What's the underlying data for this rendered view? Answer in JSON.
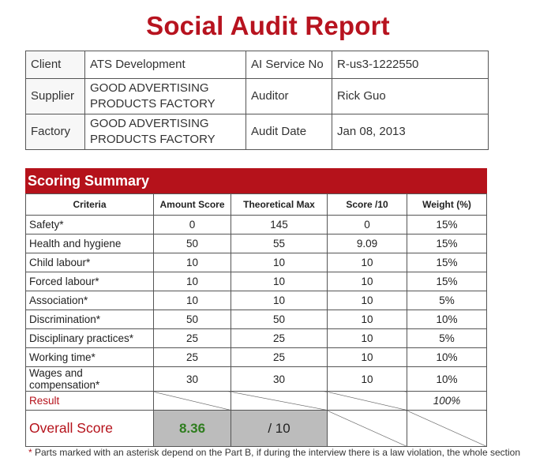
{
  "title": "Social Audit Report",
  "info": {
    "client_label": "Client",
    "client_value": "ATS Development",
    "service_label": "AI Service No",
    "service_value": "R-us3-1222550",
    "supplier_label": "Supplier",
    "supplier_value_line1": "GOOD ADVERTISING",
    "supplier_value_line2": "PRODUCTS FACTORY",
    "auditor_label": "Auditor",
    "auditor_value": "Rick Guo",
    "factory_label": "Factory",
    "factory_value_line1": "GOOD ADVERTISING",
    "factory_value_line2": "PRODUCTS FACTORY",
    "audit_date_label": "Audit Date",
    "audit_date_value": "Jan 08, 2013"
  },
  "scoring": {
    "heading": "Scoring Summary",
    "headers": [
      "Criteria",
      "Amount Score",
      "Theoretical Max",
      "Score /10",
      "Weight (%)"
    ],
    "rows": [
      [
        "Safety*",
        "0",
        "145",
        "0",
        "15%"
      ],
      [
        "Health and hygiene",
        "50",
        "55",
        "9.09",
        "15%"
      ],
      [
        "Child labour*",
        "10",
        "10",
        "10",
        "15%"
      ],
      [
        "Forced labour*",
        "10",
        "10",
        "10",
        "15%"
      ],
      [
        "Association*",
        "10",
        "10",
        "10",
        "5%"
      ],
      [
        "Discrimination*",
        "50",
        "50",
        "10",
        "10%"
      ],
      [
        "Disciplinary practices*",
        "25",
        "25",
        "10",
        "5%"
      ],
      [
        "Working time*",
        "25",
        "25",
        "10",
        "10%"
      ],
      [
        "Wages and compensation*",
        "30",
        "30",
        "10",
        "10%"
      ]
    ],
    "result_label": "Result",
    "result_weight": "100%",
    "overall_label": "Overall Score",
    "overall_score": "8.36",
    "overall_max": "/ 10"
  },
  "footnote": {
    "asterisk": "*",
    "text": " Parts marked with an asterisk depend on the Part B, if during the interview there is a law violation, the whole section"
  },
  "colors": {
    "brand_red": "#b5121b",
    "score_green": "#2e7d1e",
    "grey_cell": "#bcbcbc"
  }
}
